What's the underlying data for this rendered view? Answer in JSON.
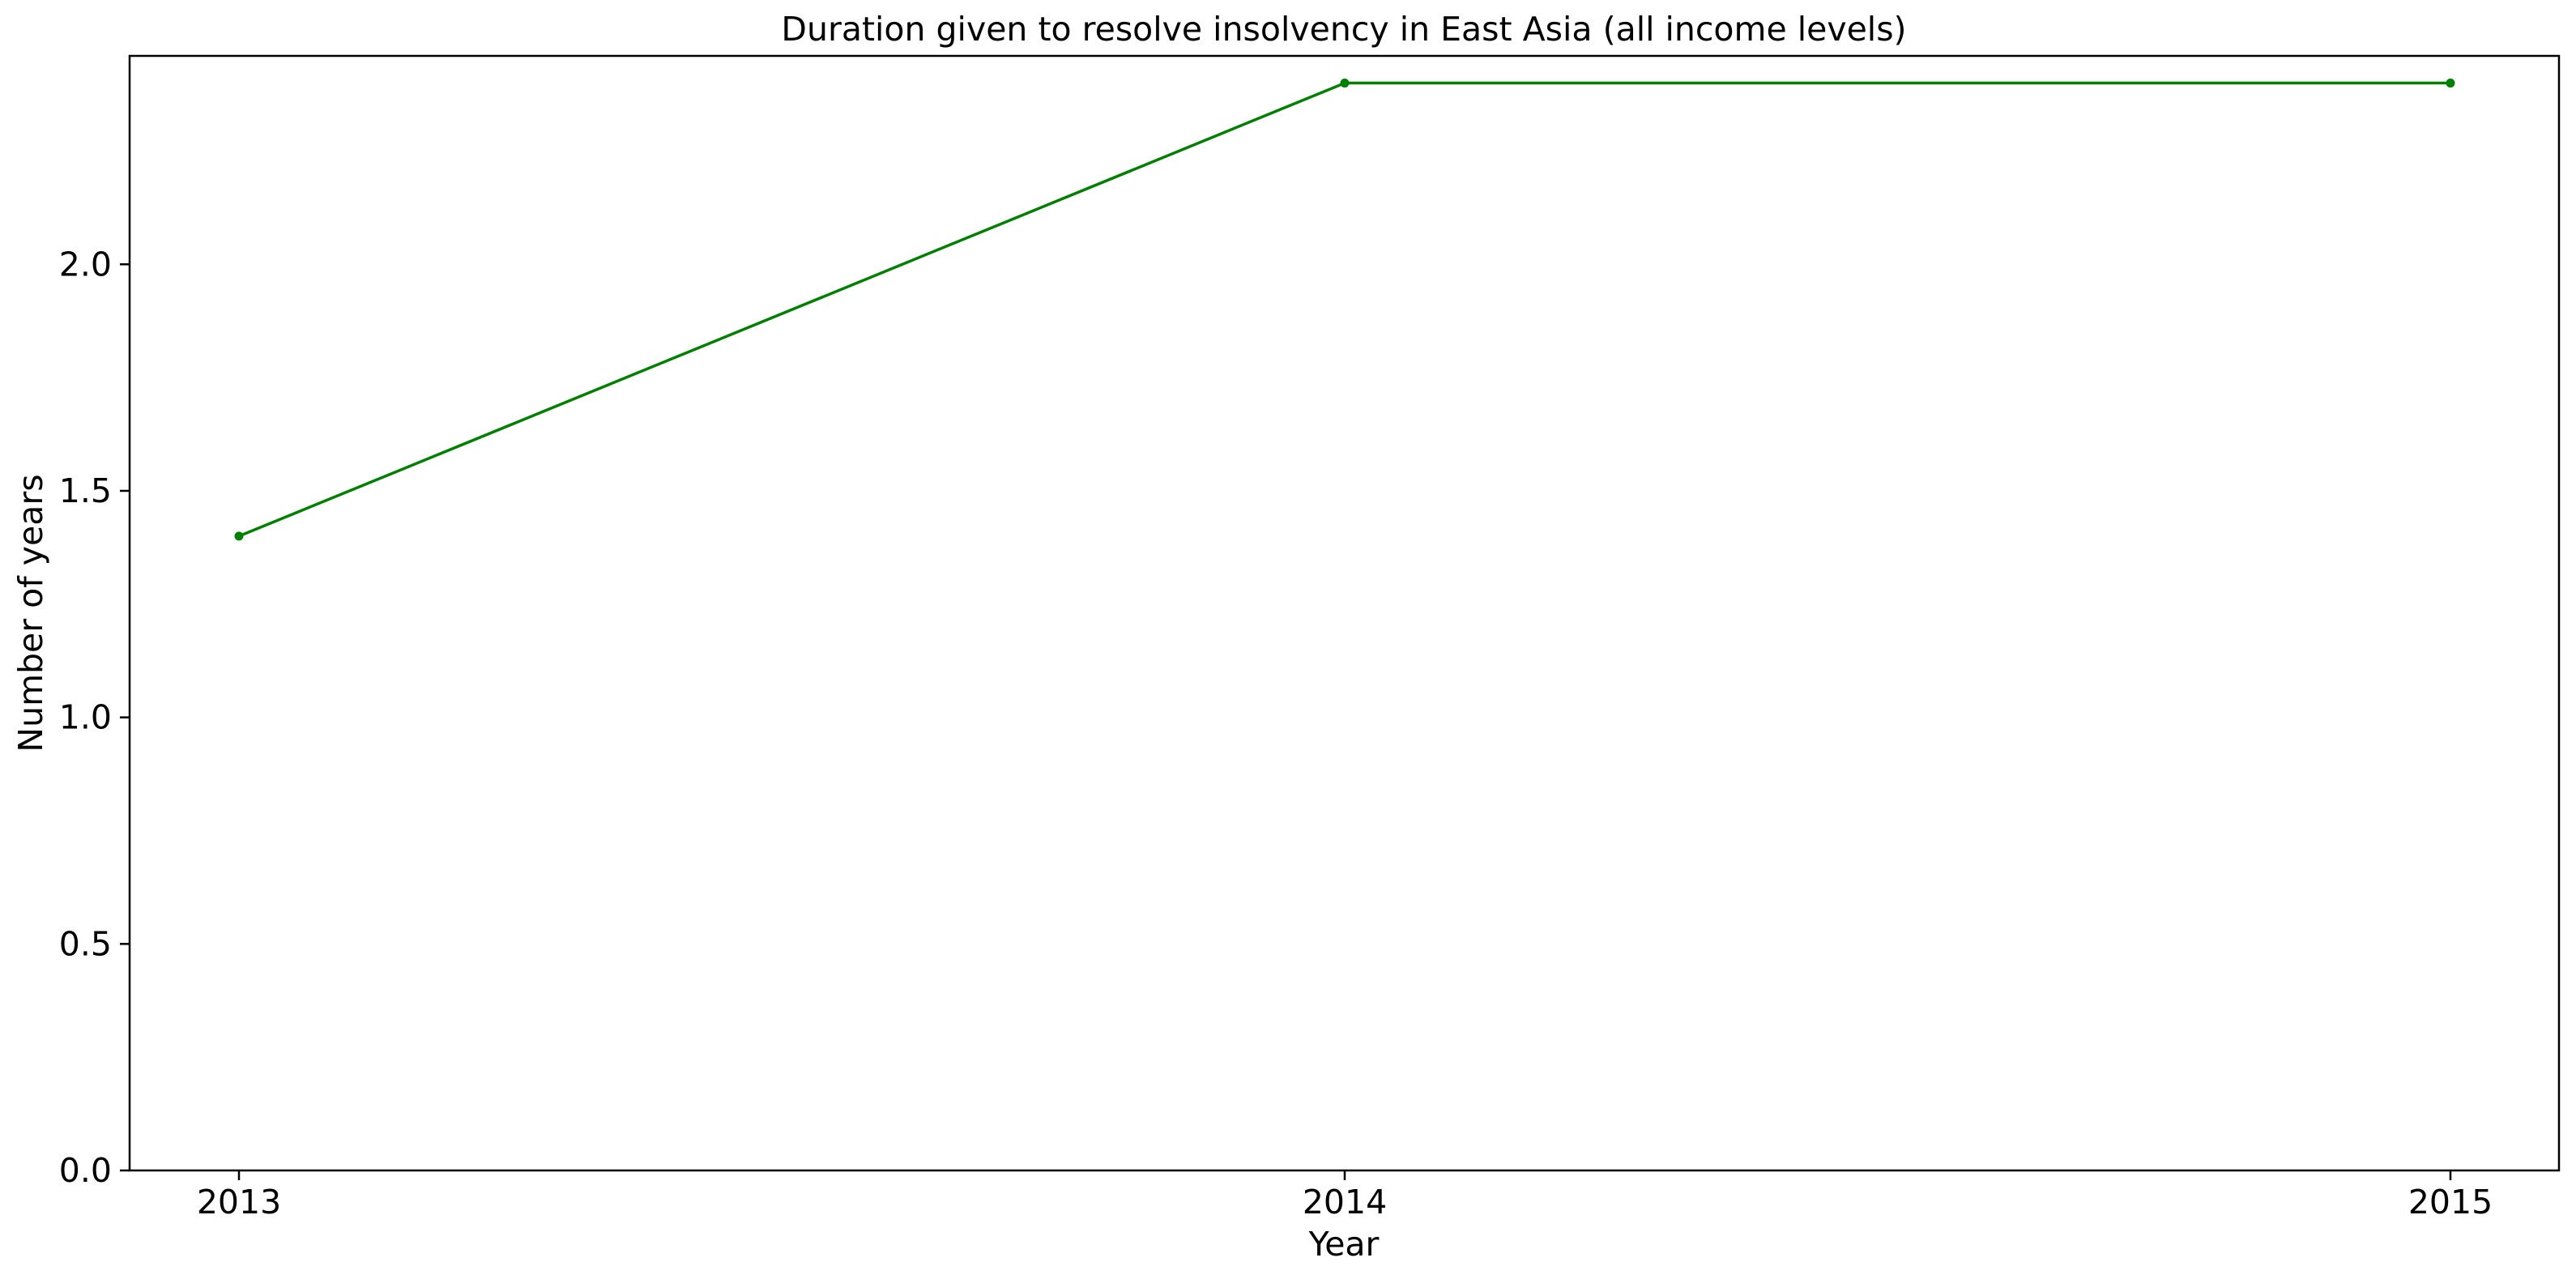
{
  "chart_data": {
    "type": "line",
    "title": "Duration given to resolve insolvency in East Asia (all income levels)",
    "xlabel": "Year",
    "ylabel": "Number of years",
    "x": [
      "2013",
      "2014",
      "2015"
    ],
    "series": [
      {
        "values": [
          1.4,
          2.4,
          2.4
        ],
        "color": "#008000",
        "marker": "circle"
      }
    ],
    "ylim": [
      0,
      2.46
    ],
    "yticks": [
      0.0,
      0.5,
      1.0,
      1.5,
      2.0
    ],
    "ytick_labels": [
      "0.0",
      "0.5",
      "1.0",
      "1.5",
      "2.0"
    ],
    "grid": false,
    "legend": false
  }
}
